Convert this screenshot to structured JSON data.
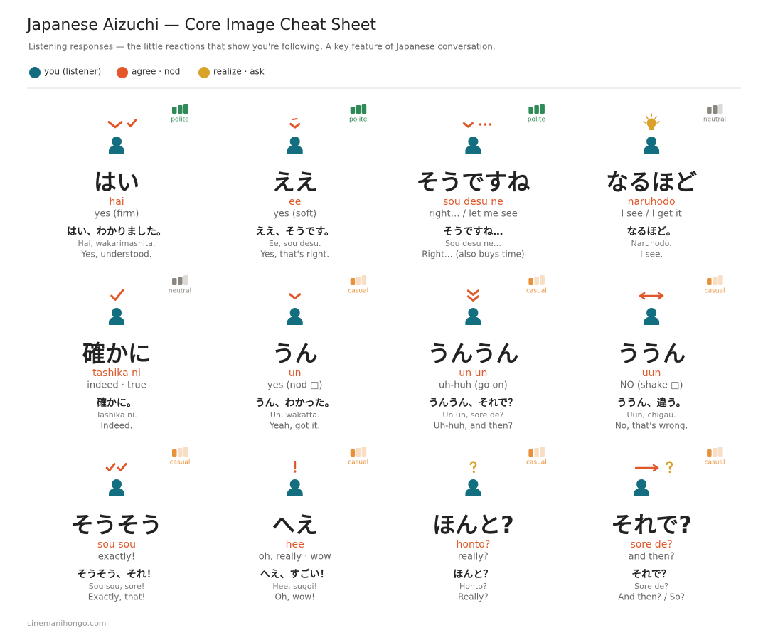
{
  "header": {
    "title": "Japanese Aizuchi — Core Image Cheat Sheet",
    "subtitle": "Listening responses — the little reactions that show you're following. A key feature of Japanese conversation."
  },
  "legend": [
    {
      "label": "you (listener)",
      "color": "#136b80"
    },
    {
      "label": "agree · nod",
      "color": "#e5572a"
    },
    {
      "label": "realize · ask",
      "color": "#d9a229"
    }
  ],
  "cards": [
    {
      "kana": "はい",
      "romaji": "hai",
      "meaning": "yes (firm)",
      "example": {
        "japanese": "はい、わかりました。",
        "romaji": "Hai, wakarimashita.",
        "english": "Yes, understood."
      },
      "register": {
        "label": "polite",
        "color": "#2e8b57",
        "bars": 3
      }
    },
    {
      "kana": "ええ",
      "romaji": "ee",
      "meaning": "yes (soft)",
      "example": {
        "japanese": "ええ、そうです。",
        "romaji": "Ee, sou desu.",
        "english": "Yes, that's right."
      },
      "register": {
        "label": "polite",
        "color": "#2e8b57",
        "bars": 3
      }
    },
    {
      "kana": "そうですね",
      "romaji": "sou desu ne",
      "meaning": "right… / let me see",
      "example": {
        "japanese": "そうですね…",
        "romaji": "Sou desu ne…",
        "english": "Right… (also buys time)"
      },
      "register": {
        "label": "polite",
        "color": "#2e8b57",
        "bars": 3
      }
    },
    {
      "kana": "なるほど",
      "romaji": "naruhodo",
      "meaning": "I see / I get it",
      "example": {
        "japanese": "なるほど。",
        "romaji": "Naruhodo.",
        "english": "I see."
      },
      "register": {
        "label": "neutral",
        "color": "#8c8680",
        "bars": 2
      }
    },
    {
      "kana": "確かに",
      "romaji": "tashika ni",
      "meaning": "indeed · true",
      "example": {
        "japanese": "確かに。",
        "romaji": "Tashika ni.",
        "english": "Indeed."
      },
      "register": {
        "label": "neutral",
        "color": "#8c8680",
        "bars": 2
      }
    },
    {
      "kana": "うん",
      "romaji": "un",
      "meaning": "yes (nod □)",
      "example": {
        "japanese": "うん、わかった。",
        "romaji": "Un, wakatta.",
        "english": "Yeah, got it."
      },
      "register": {
        "label": "casual",
        "color": "#e8913a",
        "bars": 1
      }
    },
    {
      "kana": "うんうん",
      "romaji": "un un",
      "meaning": "uh-huh (go on)",
      "example": {
        "japanese": "うんうん、それで？",
        "romaji": "Un un, sore de?",
        "english": "Uh-huh, and then?"
      },
      "register": {
        "label": "casual",
        "color": "#e8913a",
        "bars": 1
      }
    },
    {
      "kana": "ううん",
      "romaji": "uun",
      "meaning": "NO (shake □)",
      "example": {
        "japanese": "ううん、違う。",
        "romaji": "Uun, chigau.",
        "english": "No, that's wrong."
      },
      "register": {
        "label": "casual",
        "color": "#e8913a",
        "bars": 1
      }
    },
    {
      "kana": "そうそう",
      "romaji": "sou sou",
      "meaning": "exactly!",
      "example": {
        "japanese": "そうそう、それ！",
        "romaji": "Sou sou, sore!",
        "english": "Exactly, that!"
      },
      "register": {
        "label": "casual",
        "color": "#e8913a",
        "bars": 1
      }
    },
    {
      "kana": "へえ",
      "romaji": "hee",
      "meaning": "oh, really · wow",
      "example": {
        "japanese": "へえ、すごい！",
        "romaji": "Hee, sugoi!",
        "english": "Oh, wow!"
      },
      "register": {
        "label": "casual",
        "color": "#e8913a",
        "bars": 1
      }
    },
    {
      "kana": "ほんと?",
      "romaji": "honto?",
      "meaning": "really?",
      "example": {
        "japanese": "ほんと？",
        "romaji": "Honto?",
        "english": "Really?"
      },
      "register": {
        "label": "casual",
        "color": "#e8913a",
        "bars": 1
      }
    },
    {
      "kana": "それで?",
      "romaji": "sore de?",
      "meaning": "and then?",
      "example": {
        "japanese": "それで？",
        "romaji": "Sore de?",
        "english": "And then? / So?"
      },
      "register": {
        "label": "casual",
        "color": "#e8913a",
        "bars": 1
      }
    }
  ],
  "footer": "cinemanihongo.com"
}
